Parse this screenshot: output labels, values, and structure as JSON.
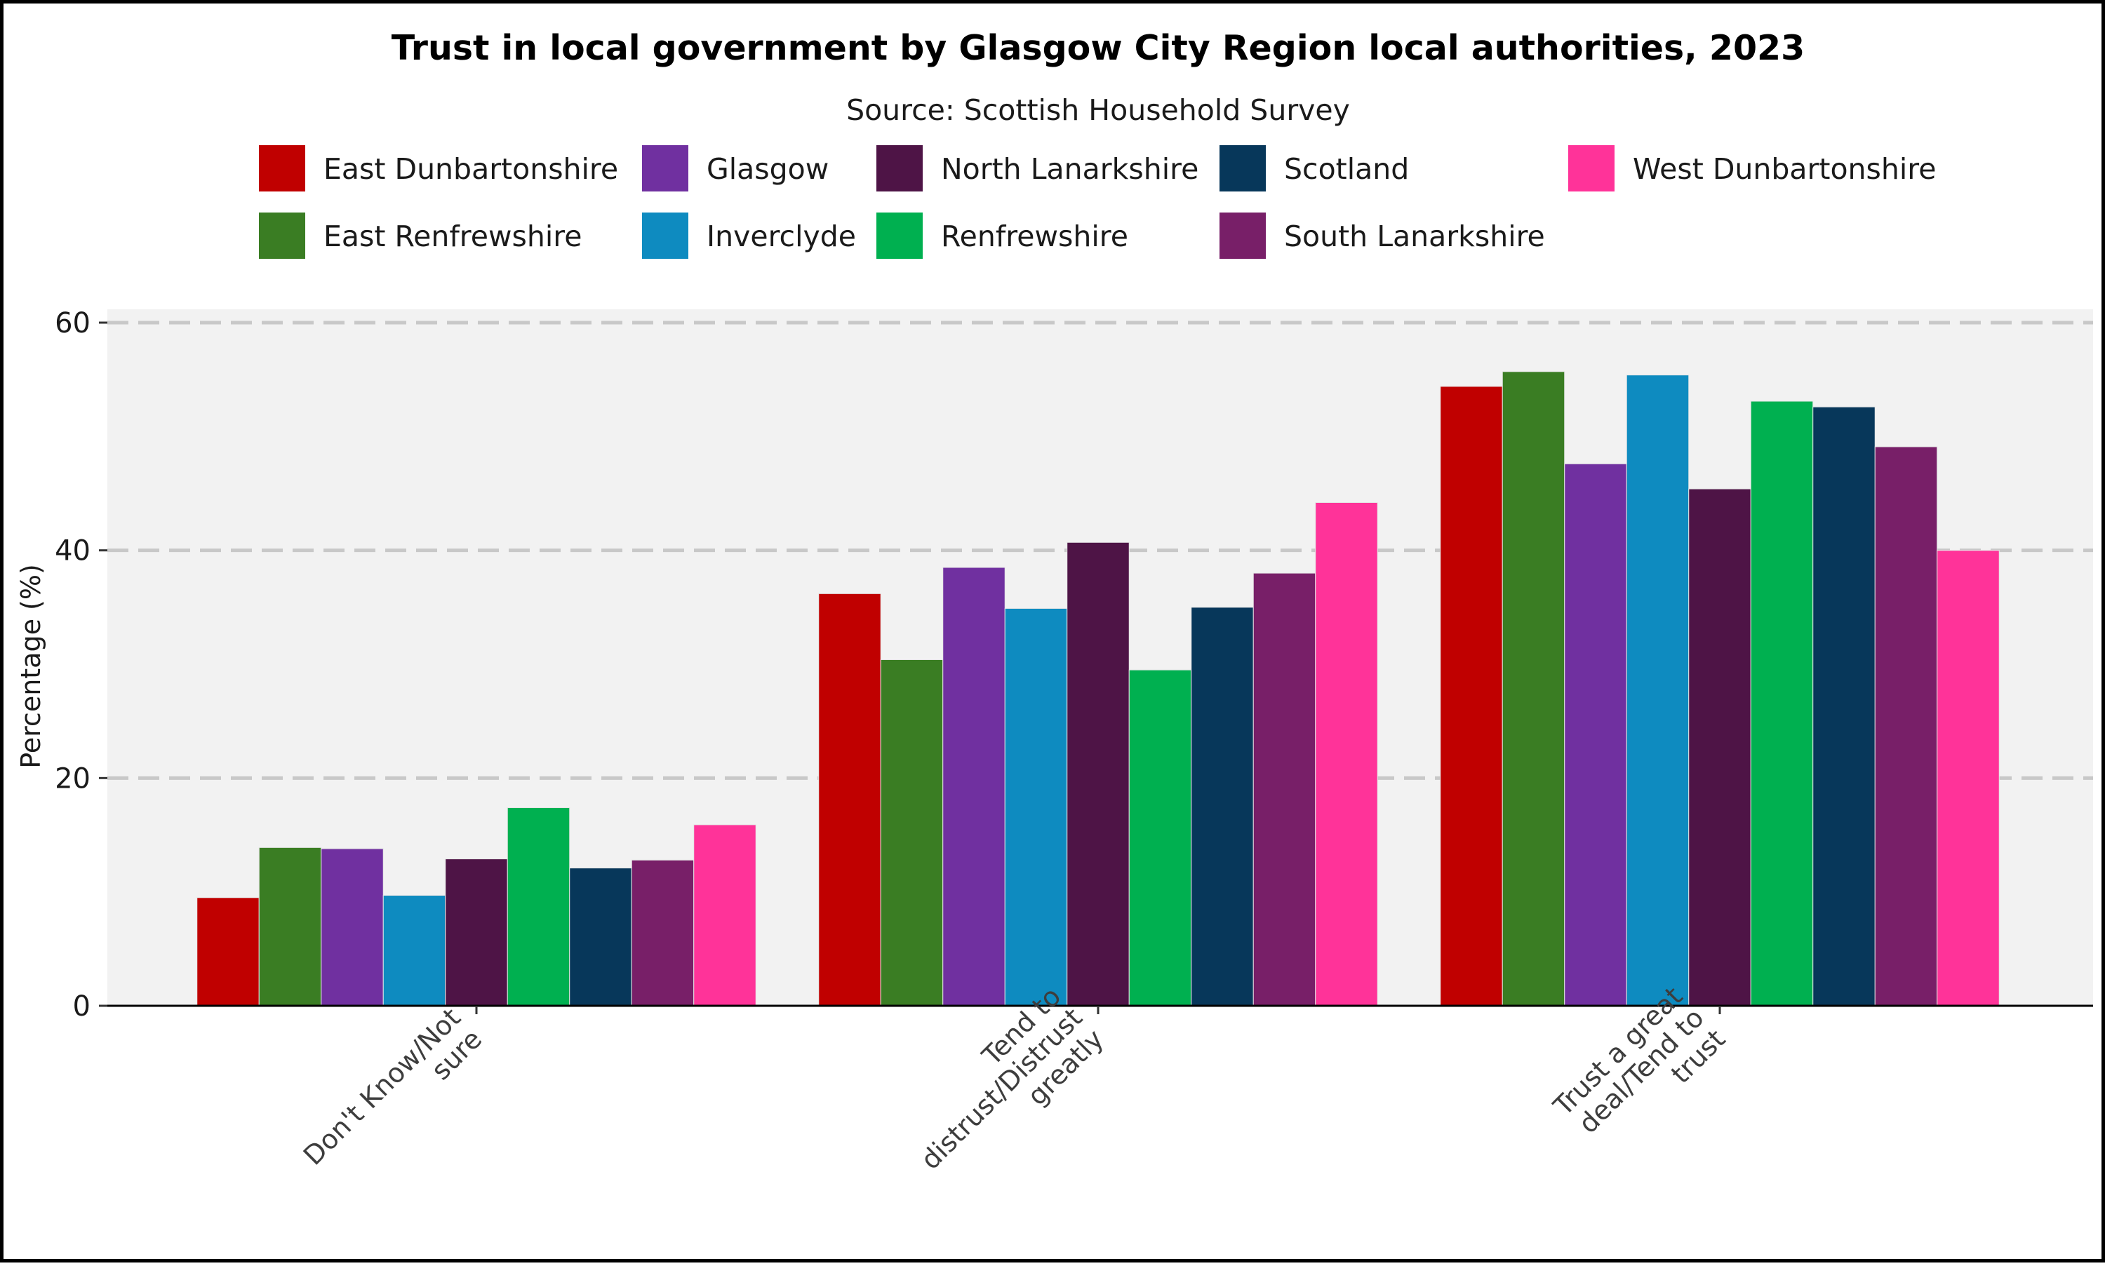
{
  "chart_data": {
    "type": "bar",
    "title": "Trust in local government by Glasgow City Region local authorities, 2023",
    "subtitle": "Source: Scottish Household Survey",
    "ylabel": "Percentage (%)",
    "xlabel": "",
    "ylim": [
      0,
      60
    ],
    "yticks": [
      0,
      20,
      40,
      60
    ],
    "grid": "horizontal dashed",
    "legend_position": "top",
    "categories": [
      [
        "Don't Know/Not",
        "sure"
      ],
      [
        "Tend to",
        "distrust/Distrust",
        "greatly"
      ],
      [
        "Trust a great",
        "deal/Tend to",
        "trust"
      ]
    ],
    "series": [
      {
        "name": "East Dunbartonshire",
        "color": "#C00000",
        "values": [
          9.5,
          36.2,
          54.4
        ]
      },
      {
        "name": "East Renfrewshire",
        "color": "#3A7D23",
        "values": [
          13.9,
          30.4,
          55.7
        ]
      },
      {
        "name": "Glasgow",
        "color": "#7030A0",
        "values": [
          13.8,
          38.5,
          47.6
        ]
      },
      {
        "name": "Inverclyde",
        "color": "#0E8BC0",
        "values": [
          9.7,
          34.9,
          55.4
        ]
      },
      {
        "name": "North Lanarkshire",
        "color": "#4E1446",
        "values": [
          12.9,
          40.7,
          45.4
        ]
      },
      {
        "name": "Renfrewshire",
        "color": "#00B050",
        "values": [
          17.4,
          29.5,
          53.1
        ]
      },
      {
        "name": "Scotland",
        "color": "#07375A",
        "values": [
          12.1,
          35.0,
          52.6
        ]
      },
      {
        "name": "South Lanarkshire",
        "color": "#781F68",
        "values": [
          12.8,
          38.0,
          49.1
        ]
      },
      {
        "name": "West Dunbartonshire",
        "color": "#FF3399",
        "values": [
          15.9,
          44.2,
          40.0
        ]
      }
    ]
  }
}
